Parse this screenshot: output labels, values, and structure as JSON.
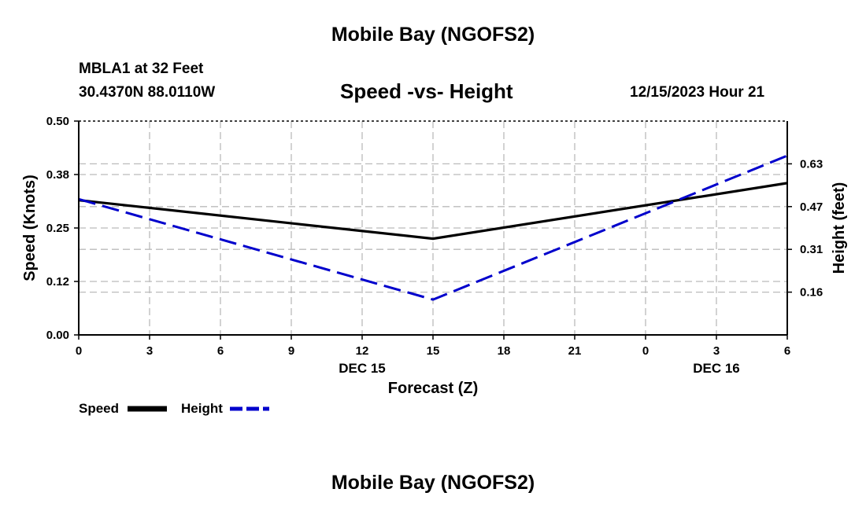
{
  "header": {
    "region_title": "Mobile Bay (NGOFS2)",
    "station_label": "MBLA1 at 32 Feet",
    "coordinates": "30.4370N  88.0110W",
    "chart_title": "Speed -vs- Height",
    "timestamp": "12/15/2023 Hour 21"
  },
  "footer": {
    "region_title": "Mobile Bay (NGOFS2)"
  },
  "legend": {
    "speed_label": "Speed",
    "height_label": "Height"
  },
  "colors": {
    "speed": "#000000",
    "height": "#0000cc",
    "grid": "#bbbbbb"
  },
  "chart_data": {
    "type": "line",
    "title": "Speed -vs- Height",
    "xlabel": "Forecast (Z)",
    "ylabel": "Speed (Knots)",
    "y2label": "Height (feet)",
    "x_ticks": [
      {
        "hour": 0,
        "label": "0"
      },
      {
        "hour": 3,
        "label": "3"
      },
      {
        "hour": 6,
        "label": "6"
      },
      {
        "hour": 9,
        "label": "9"
      },
      {
        "hour": 12,
        "label": "12"
      },
      {
        "hour": 15,
        "label": "15"
      },
      {
        "hour": 18,
        "label": "18"
      },
      {
        "hour": 21,
        "label": "21"
      },
      {
        "hour": 24,
        "label": "0"
      },
      {
        "hour": 27,
        "label": "3"
      },
      {
        "hour": 30,
        "label": "6"
      }
    ],
    "date_labels": [
      {
        "hour": 12,
        "label": "DEC 15"
      },
      {
        "hour": 27,
        "label": "DEC 16"
      }
    ],
    "xlim": [
      0,
      30
    ],
    "ylim": [
      0,
      0.5
    ],
    "y_ticks": [
      0.0,
      0.125,
      0.25,
      0.375,
      0.5
    ],
    "y_tick_labels": [
      "0.00",
      "0.12",
      "0.25",
      "0.38",
      "0.50"
    ],
    "y2lim": [
      0.0,
      0.7875
    ],
    "y2_ticks": [
      0.1575,
      0.315,
      0.4725,
      0.63
    ],
    "y2_tick_labels": [
      "0.16",
      "0.31",
      "0.47",
      "0.63"
    ],
    "grid": true,
    "series": [
      {
        "name": "Speed",
        "axis": "left",
        "style": "solid",
        "x": [
          0,
          15,
          30
        ],
        "values": [
          0.315,
          0.225,
          0.355
        ]
      },
      {
        "name": "Height",
        "axis": "right",
        "style": "dashed",
        "x": [
          0,
          15,
          30
        ],
        "values": [
          0.5,
          0.13,
          0.66
        ]
      }
    ]
  }
}
